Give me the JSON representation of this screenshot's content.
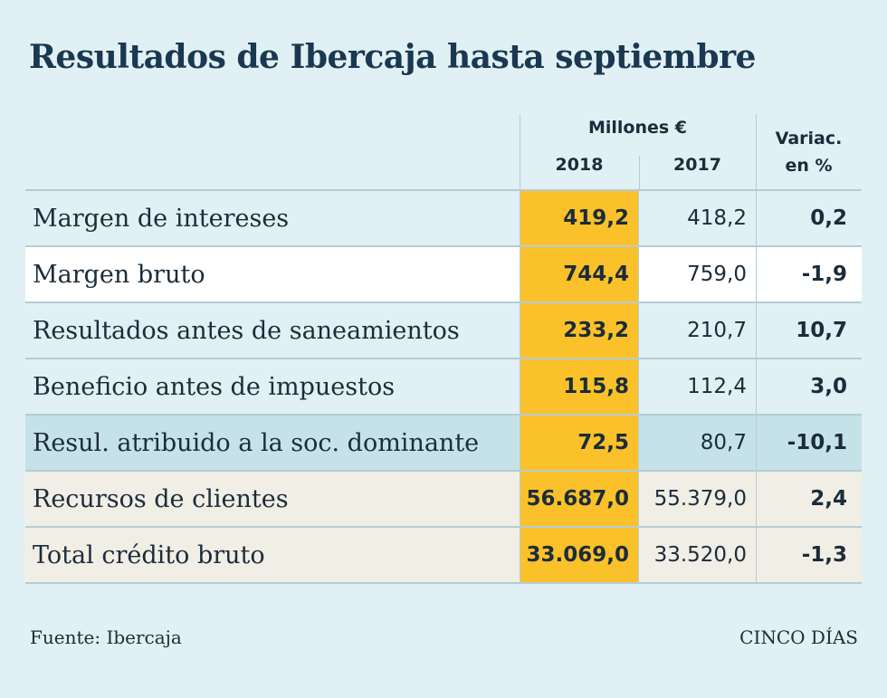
{
  "title": "Resultados de Ibercaja hasta septiembre",
  "header": {
    "group_label": "Millones €",
    "col_2018": "2018",
    "col_2017": "2017",
    "var_line1": "Variac.",
    "var_line2": "en %"
  },
  "chart_data": {
    "type": "table",
    "columns": [
      "2018",
      "2017",
      "Variac. en %"
    ],
    "rows": [
      {
        "label": "Margen de intereses",
        "v2018": "419,2",
        "v2017": "418,2",
        "var": "0,2",
        "style": "plain"
      },
      {
        "label": "Margen bruto",
        "v2018": "744,4",
        "v2017": "759,0",
        "var": "-1,9",
        "style": "white"
      },
      {
        "label": "Resultados antes de saneamientos",
        "v2018": "233,2",
        "v2017": "210,7",
        "var": "10,7",
        "style": "plain"
      },
      {
        "label": "Beneficio antes de impuestos",
        "v2018": "115,8",
        "v2017": "112,4",
        "var": "3,0",
        "style": "plain"
      },
      {
        "label": "Resul. atribuido a la soc. dominante",
        "v2018": "72,5",
        "v2017": "80,7",
        "var": "-10,1",
        "style": "blue"
      },
      {
        "label": "Recursos de clientes",
        "v2018": "56.687,0",
        "v2017": "55.379,0",
        "var": "2,4",
        "style": "beige"
      },
      {
        "label": "Total crédito bruto",
        "v2018": "33.069,0",
        "v2017": "33.520,0",
        "var": "-1,3",
        "style": "beige"
      }
    ]
  },
  "footer": {
    "source": "Fuente: Ibercaja",
    "brand": "CINCO DÍAS"
  },
  "colors": {
    "background": "#e1f0f4",
    "highlight_2018": "#fbc12a",
    "row_white": "#ffffff",
    "row_blue": "#c6e2e9",
    "row_beige": "#f1eee6"
  }
}
